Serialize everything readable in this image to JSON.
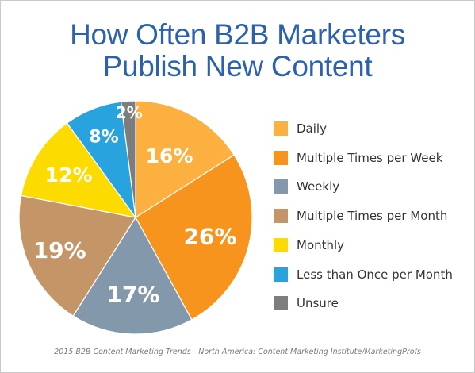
{
  "chart_data": {
    "type": "pie",
    "title_lines": [
      "How Often B2B Marketers",
      "Publish New Content"
    ],
    "slices": [
      {
        "label": "Daily",
        "value": 16,
        "display": "16%",
        "color": "#fbb040"
      },
      {
        "label": "Multiple Times per Week",
        "value": 26,
        "display": "26%",
        "color": "#f7941d"
      },
      {
        "label": "Weekly",
        "value": 17,
        "display": "17%",
        "color": "#8399ab"
      },
      {
        "label": "Multiple Times per Month",
        "value": 19,
        "display": "19%",
        "color": "#c49566"
      },
      {
        "label": "Monthly",
        "value": 12,
        "display": "12%",
        "color": "#fcdc00"
      },
      {
        "label": "Less than Once per Month",
        "value": 8,
        "display": "8%",
        "color": "#29a3de"
      },
      {
        "label": "Unsure",
        "value": 2,
        "display": "2%",
        "color": "#7d7d7d"
      }
    ],
    "legend_position": "right",
    "source": "2015 B2B Content Marketing Trends—North America: Content Marketing Institute/MarketingProfs"
  }
}
